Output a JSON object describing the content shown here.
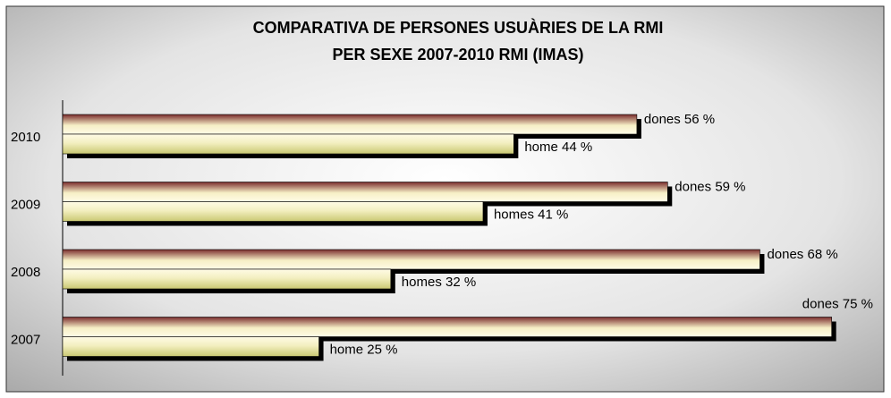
{
  "chart_data": {
    "type": "hbar",
    "title": [
      "COMPARATIVA DE PERSONES USUÀRIES DE LA RMI",
      "PER SEXE 2007-2010 RMI (IMAS)"
    ],
    "categories": [
      "2010",
      "2009",
      "2008",
      "2007"
    ],
    "series": [
      {
        "color": "#7a2c2c",
        "values": [
          56,
          59,
          68,
          75
        ],
        "value_labels": [
          "dones  56 %",
          "dones 59 %",
          "dones 68 %",
          "dones 75 %"
        ]
      },
      {
        "color": "#c9c872",
        "values": [
          44,
          41,
          32,
          25
        ],
        "value_labels": [
          "home  44 %",
          "homes 41 %",
          "homes 32 %",
          "home 25 %"
        ]
      }
    ],
    "xlim": [
      0,
      80
    ]
  }
}
